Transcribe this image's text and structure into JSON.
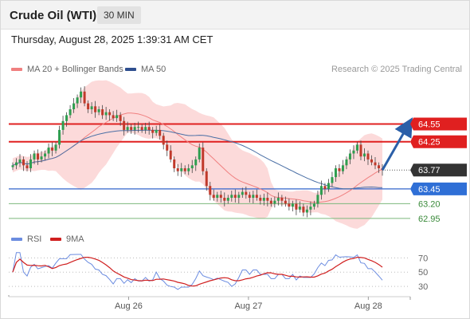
{
  "header": {
    "title": "Crude Oil (WTI)",
    "timeframe": "30 MIN"
  },
  "timestamp": "Thursday, August 28, 2025 1:39:31 AM CET",
  "legend": {
    "ma20_label": "MA 20 + Bollinger Bands",
    "ma50_label": "MA 50",
    "rsi_label": "RSI",
    "rsi_ma_label": "9MA",
    "credit": "Research © 2025 Trading Central"
  },
  "colors": {
    "resistance": "#e02020",
    "support": "#3366cc",
    "target": "#7cb87c",
    "current": "#333333",
    "bollinger_fill": "#fbd3d3",
    "ma20": "#f08080",
    "ma50": "#4a6fa5",
    "candle_up": "#2e9e4f",
    "candle_down": "#c0392b",
    "arrow": "#2b5fa8",
    "rsi": "#6b8ce0",
    "rsi_ma": "#d01f1f"
  },
  "chart_data": {
    "type": "candlestick",
    "symbol": "Crude Oil (WTI)",
    "interval": "30 MIN",
    "x_tick_labels": [
      "Aug 26",
      "Aug 27",
      "Aug 28"
    ],
    "price_levels": [
      {
        "label": "64.55",
        "value": 64.55,
        "kind": "resistance"
      },
      {
        "label": "64.25",
        "value": 64.25,
        "kind": "resistance"
      },
      {
        "label": "63.77",
        "value": 63.77,
        "kind": "current"
      },
      {
        "label": "63.45",
        "value": 63.45,
        "kind": "support"
      },
      {
        "label": "63.20",
        "value": 63.2,
        "kind": "target"
      },
      {
        "label": "62.95",
        "value": 62.95,
        "kind": "target"
      }
    ],
    "forecast_arrow": {
      "from": 63.77,
      "to": 64.55,
      "direction": "up"
    },
    "close_series": [
      63.85,
      63.9,
      63.95,
      63.85,
      63.8,
      63.95,
      64.05,
      63.95,
      64.0,
      64.05,
      64.15,
      64.1,
      64.2,
      64.45,
      64.6,
      64.7,
      64.8,
      64.9,
      65.0,
      65.1,
      64.9,
      64.8,
      64.85,
      64.75,
      64.8,
      64.7,
      64.75,
      64.7,
      64.65,
      64.7,
      64.6,
      64.45,
      64.5,
      64.45,
      64.5,
      64.5,
      64.45,
      64.5,
      64.45,
      64.4,
      64.45,
      64.35,
      64.2,
      64.1,
      63.95,
      63.8,
      63.75,
      63.8,
      63.75,
      63.8,
      63.85,
      63.95,
      64.15,
      63.75,
      63.5,
      63.35,
      63.3,
      63.35,
      63.3,
      63.25,
      63.3,
      63.35,
      63.3,
      63.35,
      63.4,
      63.35,
      63.3,
      63.35,
      63.3,
      63.25,
      63.3,
      63.25,
      63.2,
      63.25,
      63.3,
      63.25,
      63.2,
      63.15,
      63.2,
      63.1,
      63.15,
      63.05,
      63.1,
      63.15,
      63.2,
      63.35,
      63.5,
      63.45,
      63.55,
      63.65,
      63.8,
      63.75,
      63.85,
      63.95,
      64.05,
      64.1,
      64.2,
      64.0,
      64.05,
      63.95,
      63.9,
      63.85,
      63.8,
      63.77
    ],
    "price_range": [
      62.8,
      65.3
    ],
    "indicators": {
      "rsi": {
        "levels": [
          {
            "label": "70",
            "value": 70
          },
          {
            "label": "50",
            "value": 50
          },
          {
            "label": "30",
            "value": 30
          }
        ],
        "range": [
          20,
          85
        ]
      }
    }
  }
}
